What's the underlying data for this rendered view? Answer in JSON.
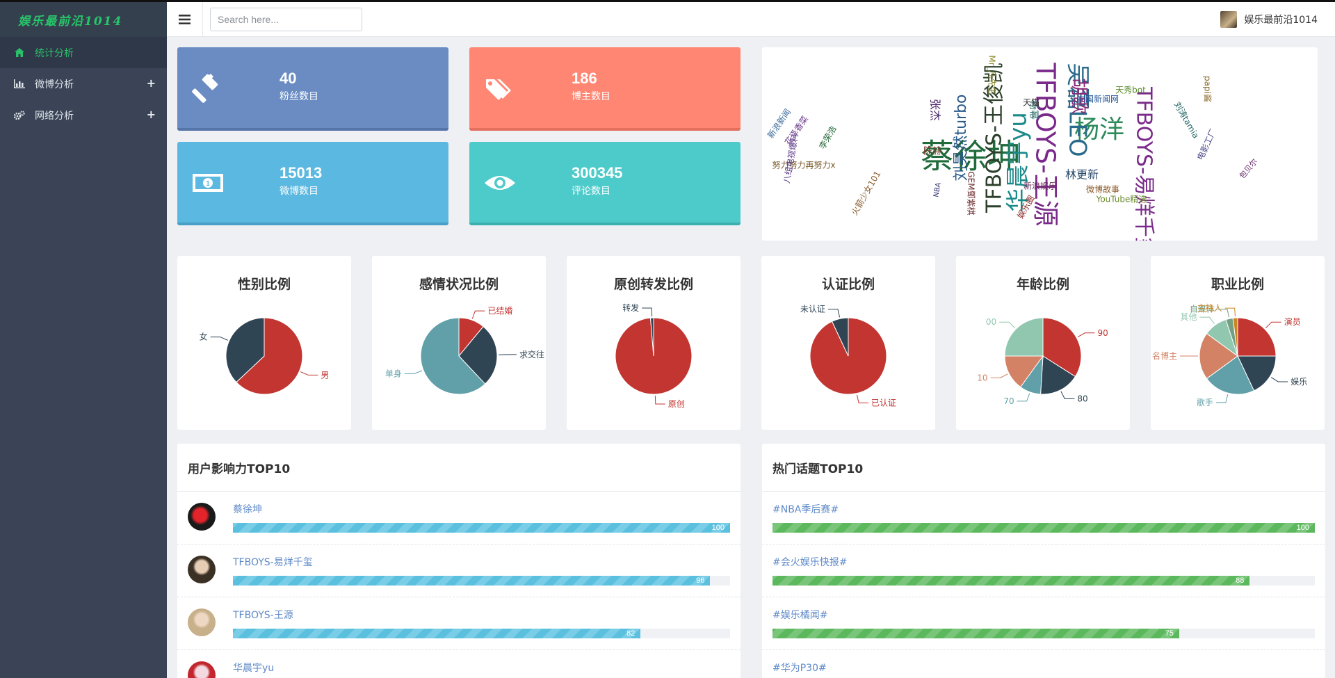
{
  "brand": "娱乐最前沿1014",
  "sidebar": {
    "items": [
      {
        "label": "统计分析",
        "icon": "home-icon",
        "active": true
      },
      {
        "label": "微博分析",
        "icon": "bar-chart-icon",
        "expandable": true
      },
      {
        "label": "网络分析",
        "icon": "cogs-icon",
        "expandable": true
      }
    ]
  },
  "header": {
    "search_placeholder": "Search here...",
    "user_name": "娱乐最前沿1014"
  },
  "stats": [
    {
      "value": "40",
      "label": "粉丝数目",
      "icon": "gavel-icon",
      "color": "#6a8cc3"
    },
    {
      "value": "186",
      "label": "博主数目",
      "icon": "tags-icon",
      "color": "#fe8672"
    },
    {
      "value": "15013",
      "label": "微博数目",
      "icon": "money-icon",
      "color": "#5bb8e0"
    },
    {
      "value": "300345",
      "label": "评论数目",
      "icon": "eye-icon",
      "color": "#4dcbca"
    }
  ],
  "wordcloud": {
    "words": [
      {
        "text": "蔡徐坤",
        "color": "#1f6b3a"
      },
      {
        "text": "杨洋",
        "color": "#2c8a5a"
      },
      {
        "text": "华晨宇yu",
        "color": "#1b8a8a"
      },
      {
        "text": "TFBOYS-王俊凯",
        "color": "#2b3f2b"
      },
      {
        "text": "TFBOYS-王源",
        "color": "#7a2a8a"
      },
      {
        "text": "TFBOYS-易烊千玺",
        "color": "#7a2a8a"
      },
      {
        "text": "吴磊LEO",
        "color": "#2a6a8a"
      },
      {
        "text": "刘昊然turbo",
        "color": "#2a5a8a"
      },
      {
        "text": "胡歌",
        "color": "#8a2a7a"
      },
      {
        "text": "林更新",
        "color": "#2a4a6a"
      },
      {
        "text": "张杰",
        "color": "#4a2a6a"
      },
      {
        "text": "杨幂",
        "color": "#2a6a6a"
      },
      {
        "text": "陈赫",
        "color": "#7a3a2a"
      },
      {
        "text": "天猫",
        "color": "#333333"
      },
      {
        "text": "新浪娱乐",
        "color": "#6a2a5a"
      },
      {
        "text": "微博故事",
        "color": "#8a5a2a"
      },
      {
        "text": "YouTube精选",
        "color": "#6a8a2a"
      },
      {
        "text": "天秀bot",
        "color": "#5a8a2a"
      },
      {
        "text": "中国新闻网",
        "color": "#2a5a9a"
      },
      {
        "text": "Mr_凡先生",
        "color": "#8a8a2a"
      },
      {
        "text": "努力努力再努力x",
        "color": "#7a5a2a"
      },
      {
        "text": "八组电视爆料",
        "color": "#5a3a8a"
      },
      {
        "text": "火箭少女101",
        "color": "#8a5a2a"
      },
      {
        "text": "新浪新闻",
        "color": "#3a6a9a"
      },
      {
        "text": "花泽香菜",
        "color": "#6a3a8a"
      },
      {
        "text": "李荣浩",
        "color": "#2a6a3a"
      },
      {
        "text": "包贝尔",
        "color": "#6a2a6a"
      },
      {
        "text": "刘涛tamia",
        "color": "#2a6a6a"
      },
      {
        "text": "电影工厂",
        "color": "#4a4a8a"
      },
      {
        "text": "GEM鄧紫棋",
        "color": "#6a2a2a"
      },
      {
        "text": "NBA",
        "color": "#2a2a6a"
      },
      {
        "text": "papi酱",
        "color": "#8a6a2a"
      },
      {
        "text": "娱乐圈",
        "color": "#8a2a2a"
      }
    ]
  },
  "pies": [
    {
      "title": "性别比例",
      "slices": [
        {
          "label": "男",
          "value": 63,
          "color": "#c23531"
        },
        {
          "label": "女",
          "value": 37,
          "color": "#2f4554"
        }
      ]
    },
    {
      "title": "感情状况比例",
      "slices": [
        {
          "label": "已结婚",
          "value": 11,
          "color": "#c23531"
        },
        {
          "label": "求交往",
          "value": 27,
          "color": "#2f4554"
        },
        {
          "label": "单身",
          "value": 62,
          "color": "#61a0a8"
        }
      ]
    },
    {
      "title": "原创转发比例",
      "slices": [
        {
          "label": "原创",
          "value": 98.7,
          "color": "#c23531"
        },
        {
          "label": "转发",
          "value": 1.3,
          "color": "#2f4554"
        }
      ]
    },
    {
      "title": "认证比例",
      "slices": [
        {
          "label": "已认证",
          "value": 93,
          "color": "#c23531"
        },
        {
          "label": "未认证",
          "value": 7,
          "color": "#2f4554"
        }
      ]
    },
    {
      "title": "年龄比例",
      "slices": [
        {
          "label": "90",
          "value": 34,
          "color": "#c23531"
        },
        {
          "label": "80",
          "value": 17,
          "color": "#2f4554"
        },
        {
          "label": "70",
          "value": 9,
          "color": "#61a0a8"
        },
        {
          "label": "10",
          "value": 15,
          "color": "#d48265"
        },
        {
          "label": "00",
          "value": 25,
          "color": "#91c7ae"
        }
      ]
    },
    {
      "title": "职业比例",
      "slices": [
        {
          "label": "演员",
          "value": 25,
          "color": "#c23531"
        },
        {
          "label": "娱乐",
          "value": 18,
          "color": "#2f4554"
        },
        {
          "label": "歌手",
          "value": 22,
          "color": "#61a0a8"
        },
        {
          "label": "名博主",
          "value": 20,
          "color": "#d48265"
        },
        {
          "label": "其他",
          "value": 10,
          "color": "#91c7ae"
        },
        {
          "label": "自媒体",
          "value": 3,
          "color": "#749f83"
        },
        {
          "label": "主持人",
          "value": 2,
          "color": "#ca8622"
        }
      ]
    }
  ],
  "influence": {
    "title": "用户影响力TOP10",
    "rows": [
      {
        "name": "蔡徐坤",
        "value": 100
      },
      {
        "name": "TFBOYS-易烊千玺",
        "value": 96
      },
      {
        "name": "TFBOYS-王源",
        "value": 82
      },
      {
        "name": "华晨宇yu",
        "value": 0
      }
    ]
  },
  "topics": {
    "title": "热门话题TOP10",
    "rows": [
      {
        "name": "#NBA季后赛#",
        "value": 100
      },
      {
        "name": "#会火娱乐快报#",
        "value": 88
      },
      {
        "name": "#娱乐橘闻#",
        "value": 75
      },
      {
        "name": "#华为P30#",
        "value": 0
      }
    ]
  }
}
